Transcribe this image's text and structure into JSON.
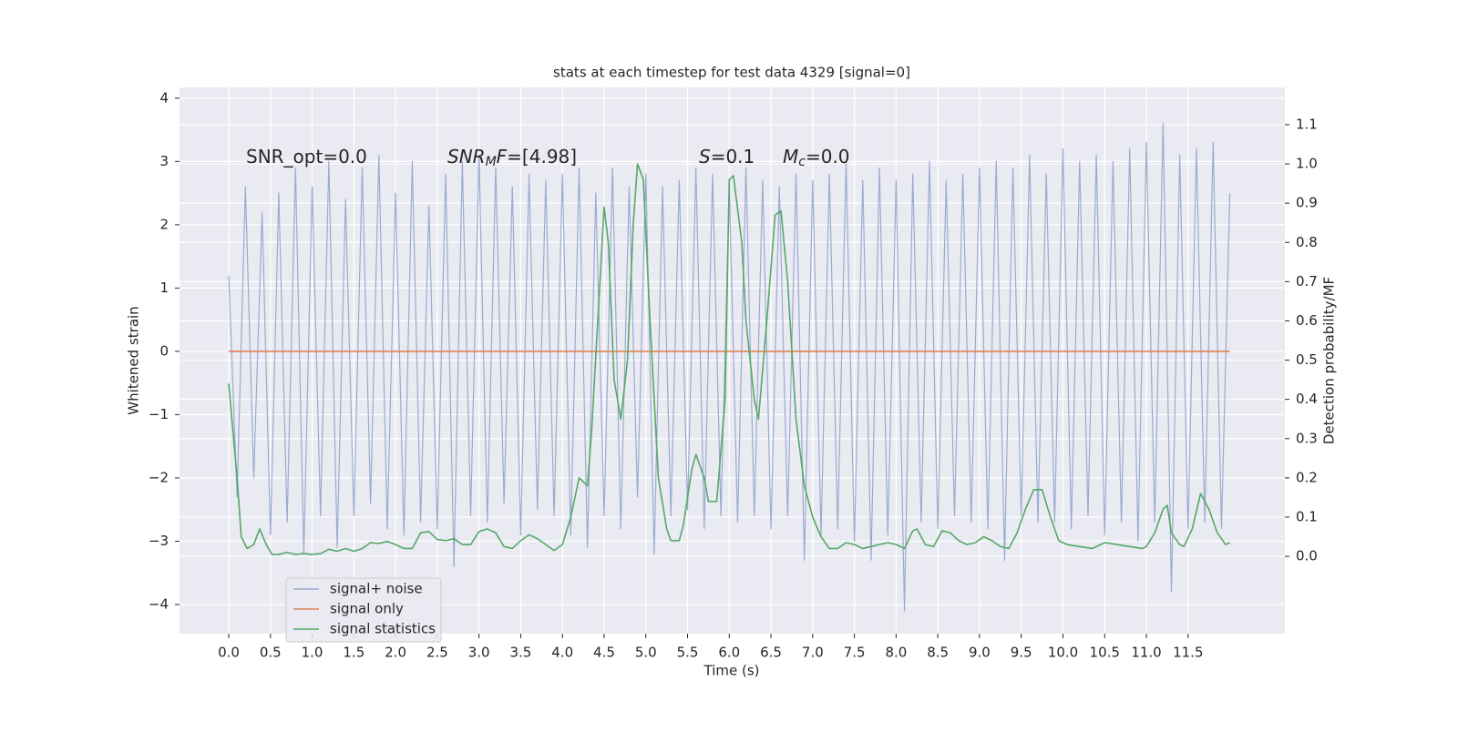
{
  "chart_data": {
    "type": "line",
    "title": "stats at each timestep for test data 4329 [signal=0]",
    "xlabel": "Time (s)",
    "ylabel": "Whitened strain",
    "y2label": "Detection probability/MF",
    "x": [
      0.0,
      0.1,
      0.2,
      0.3,
      0.4,
      0.5,
      0.6,
      0.7,
      0.8,
      0.9,
      1.0,
      1.1,
      1.2,
      1.3,
      1.4,
      1.5,
      1.6,
      1.7,
      1.8,
      1.9,
      2.0,
      2.1,
      2.2,
      2.3,
      2.4,
      2.5,
      2.6,
      2.7,
      2.8,
      2.9,
      3.0,
      3.1,
      3.2,
      3.3,
      3.4,
      3.5,
      3.6,
      3.7,
      3.8,
      3.9,
      4.0,
      4.1,
      4.2,
      4.3,
      4.4,
      4.5,
      4.6,
      4.7,
      4.8,
      4.9,
      5.0,
      5.1,
      5.2,
      5.3,
      5.4,
      5.5,
      5.6,
      5.7,
      5.8,
      5.9,
      6.0,
      6.1,
      6.2,
      6.3,
      6.4,
      6.5,
      6.6,
      6.7,
      6.8,
      6.9,
      7.0,
      7.1,
      7.2,
      7.3,
      7.4,
      7.5,
      7.6,
      7.7,
      7.8,
      7.9,
      8.0,
      8.1,
      8.2,
      8.3,
      8.4,
      8.5,
      8.6,
      8.7,
      8.8,
      8.9,
      9.0,
      9.1,
      9.2,
      9.3,
      9.4,
      9.5,
      9.6,
      9.7,
      9.8,
      9.9,
      10.0,
      10.1,
      10.2,
      10.3,
      10.4,
      10.5,
      10.6,
      10.7,
      10.8,
      10.9,
      11.0,
      11.1,
      11.2,
      11.3,
      11.4,
      11.5,
      11.6,
      11.7,
      11.8,
      11.9,
      12.0
    ],
    "series": [
      {
        "name": "signal+ noise",
        "color": "#9aabd0",
        "values": [
          1.2,
          -2.3,
          2.6,
          -2.0,
          2.2,
          -2.9,
          2.5,
          -2.7,
          2.9,
          -3.2,
          2.6,
          -2.6,
          3.0,
          -3.1,
          2.4,
          -2.6,
          2.9,
          -2.4,
          3.1,
          -2.8,
          2.5,
          -2.9,
          3.0,
          -2.7,
          2.3,
          -2.8,
          2.8,
          -3.4,
          3.0,
          -2.6,
          3.1,
          -2.7,
          2.9,
          -2.4,
          2.6,
          -2.9,
          2.8,
          -2.5,
          2.7,
          -2.6,
          2.8,
          -2.9,
          2.9,
          -3.1,
          2.5,
          -2.6,
          2.9,
          -2.8,
          2.6,
          -2.3,
          2.8,
          -3.2,
          2.6,
          -2.6,
          2.7,
          -2.5,
          2.9,
          -2.8,
          2.8,
          -2.6,
          2.6,
          -2.7,
          2.9,
          -2.6,
          2.7,
          -2.8,
          2.6,
          -2.6,
          2.8,
          -3.3,
          2.7,
          -2.9,
          2.8,
          -2.8,
          3.0,
          -3.0,
          2.7,
          -3.3,
          2.9,
          -2.9,
          2.7,
          -4.1,
          2.8,
          -2.7,
          3.0,
          -2.8,
          2.7,
          -2.6,
          2.8,
          -2.7,
          2.9,
          -2.8,
          3.0,
          -3.3,
          2.9,
          -2.6,
          3.1,
          -2.7,
          2.8,
          -2.7,
          3.2,
          -2.8,
          3.0,
          -2.6,
          3.1,
          -2.9,
          3.0,
          -2.7,
          3.2,
          -3.0,
          3.3,
          -2.7,
          3.6,
          -3.8,
          3.1,
          -2.8,
          3.2,
          -2.7,
          3.3,
          -2.8,
          2.5
        ]
      },
      {
        "name": "signal only",
        "color": "#dd8452",
        "x": [
          0.0,
          12.0
        ],
        "values": [
          0,
          0
        ]
      },
      {
        "name": "signal statistics",
        "color": "#55a868",
        "axis": "y2",
        "x": [
          0.0,
          0.1,
          0.15,
          0.22,
          0.3,
          0.37,
          0.45,
          0.52,
          0.6,
          0.7,
          0.8,
          0.9,
          1.0,
          1.1,
          1.2,
          1.3,
          1.4,
          1.5,
          1.6,
          1.7,
          1.8,
          1.9,
          2.0,
          2.1,
          2.2,
          2.3,
          2.4,
          2.5,
          2.6,
          2.7,
          2.8,
          2.9,
          3.0,
          3.1,
          3.2,
          3.3,
          3.4,
          3.5,
          3.6,
          3.7,
          3.8,
          3.9,
          4.0,
          4.1,
          4.2,
          4.3,
          4.35,
          4.45,
          4.5,
          4.55,
          4.62,
          4.7,
          4.78,
          4.85,
          4.9,
          4.97,
          5.05,
          5.15,
          5.25,
          5.3,
          5.4,
          5.45,
          5.55,
          5.6,
          5.7,
          5.75,
          5.85,
          5.95,
          6.0,
          6.05,
          6.15,
          6.2,
          6.3,
          6.35,
          6.45,
          6.55,
          6.62,
          6.7,
          6.8,
          6.9,
          7.0,
          7.1,
          7.2,
          7.3,
          7.4,
          7.5,
          7.6,
          7.7,
          7.8,
          7.9,
          8.0,
          8.1,
          8.2,
          8.25,
          8.35,
          8.45,
          8.55,
          8.65,
          8.75,
          8.85,
          8.95,
          9.05,
          9.15,
          9.25,
          9.35,
          9.45,
          9.55,
          9.65,
          9.75,
          9.85,
          9.95,
          10.05,
          10.2,
          10.35,
          10.5,
          10.65,
          10.8,
          10.95,
          11.0,
          11.1,
          11.2,
          11.25,
          11.3,
          11.4,
          11.45,
          11.55,
          11.65,
          11.75,
          11.85,
          11.95,
          12.0
        ],
        "values": [
          0.44,
          0.2,
          0.05,
          0.02,
          0.03,
          0.07,
          0.03,
          0.005,
          0.005,
          0.01,
          0.005,
          0.007,
          0.005,
          0.007,
          0.018,
          0.013,
          0.02,
          0.013,
          0.02,
          0.035,
          0.033,
          0.038,
          0.03,
          0.02,
          0.02,
          0.06,
          0.063,
          0.043,
          0.04,
          0.045,
          0.03,
          0.03,
          0.063,
          0.07,
          0.06,
          0.025,
          0.02,
          0.04,
          0.055,
          0.045,
          0.03,
          0.015,
          0.03,
          0.1,
          0.2,
          0.18,
          0.32,
          0.7,
          0.89,
          0.8,
          0.45,
          0.35,
          0.5,
          0.85,
          1.0,
          0.96,
          0.6,
          0.2,
          0.07,
          0.04,
          0.04,
          0.08,
          0.22,
          0.26,
          0.2,
          0.14,
          0.14,
          0.4,
          0.96,
          0.97,
          0.8,
          0.6,
          0.4,
          0.35,
          0.6,
          0.87,
          0.88,
          0.7,
          0.35,
          0.18,
          0.1,
          0.05,
          0.02,
          0.02,
          0.035,
          0.03,
          0.02,
          0.025,
          0.03,
          0.035,
          0.03,
          0.02,
          0.065,
          0.07,
          0.03,
          0.025,
          0.065,
          0.06,
          0.04,
          0.03,
          0.035,
          0.05,
          0.04,
          0.025,
          0.02,
          0.06,
          0.12,
          0.17,
          0.17,
          0.1,
          0.04,
          0.03,
          0.025,
          0.02,
          0.035,
          0.03,
          0.025,
          0.02,
          0.025,
          0.06,
          0.12,
          0.13,
          0.06,
          0.03,
          0.025,
          0.07,
          0.16,
          0.12,
          0.06,
          0.03,
          0.035
        ]
      }
    ],
    "xlim": [
      -0.59,
      12.66
    ],
    "ylim": [
      -4.46,
      4.17
    ],
    "y2lim": [
      -0.197,
      1.195
    ],
    "xticks": [
      {
        "value": 0,
        "label": "0.0"
      },
      0.5,
      {
        "value": 1,
        "label": "1.0"
      },
      1.5,
      {
        "value": 2,
        "label": "2.0"
      },
      2.5,
      {
        "value": 3,
        "label": "3.0"
      },
      3.5,
      {
        "value": 4,
        "label": "4.0"
      },
      4.5,
      {
        "value": 5,
        "label": "5.0"
      },
      5.5,
      {
        "value": 6,
        "label": "6.0"
      },
      6.5,
      {
        "value": 7,
        "label": "7.0"
      },
      7.5,
      {
        "value": 8,
        "label": "8.0"
      },
      8.5,
      {
        "value": 9,
        "label": "9.0"
      },
      9.5,
      {
        "value": 10,
        "label": "10.0"
      },
      10.5,
      {
        "value": 11,
        "label": "11.0"
      },
      11.5
    ],
    "yticks": [
      {
        "value": -4,
        "label": "−4"
      },
      {
        "value": -3,
        "label": "−3"
      },
      {
        "value": -2,
        "label": "−2"
      },
      {
        "value": -1,
        "label": "−1"
      },
      0,
      1,
      2,
      3,
      4
    ],
    "y2ticks": [
      {
        "value": 0,
        "label": "0.0"
      },
      0.1,
      0.2,
      0.3,
      0.4,
      0.5,
      0.6,
      0.7,
      0.8,
      0.9,
      {
        "value": 1,
        "label": "1.0"
      },
      1.1
    ],
    "grid": true,
    "legend_loc": "lower left",
    "annotations": [
      [
        {
          "text": "SNR_opt=0.0",
          "style": "normal"
        }
      ],
      [
        {
          "text": "SNR",
          "style": "italic"
        },
        {
          "text": "M",
          "style": "italic-sub"
        },
        {
          "text": "F",
          "style": "italic"
        },
        {
          "text": "=[4.98]",
          "style": "normal"
        }
      ],
      [
        {
          "text": "S",
          "style": "italic"
        },
        {
          "text": "=0.1",
          "style": "normal"
        }
      ],
      [
        {
          "text": "M",
          "style": "italic"
        },
        {
          "text": "c",
          "style": "italic-sub"
        },
        {
          "text": "=0.0",
          "style": "normal"
        }
      ]
    ]
  }
}
